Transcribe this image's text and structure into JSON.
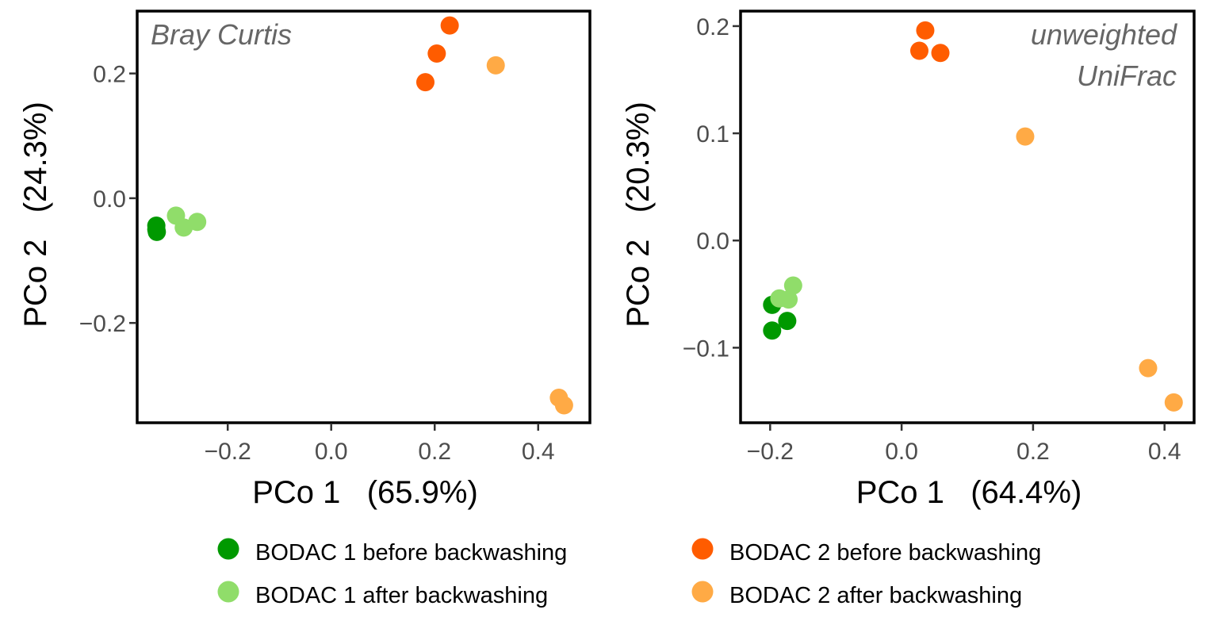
{
  "chart_data": [
    {
      "type": "scatter",
      "panel_label": [
        "Bray Curtis"
      ],
      "panel_label_position": "top-left",
      "xlabel": "PCo 1   (65.9%)",
      "ylabel": "PCo 2   (24.3%)",
      "xlim": [
        -0.375,
        0.5
      ],
      "ylim": [
        -0.36,
        0.3
      ],
      "xticks": [
        {
          "value": -0.2,
          "label": "−0.2"
        },
        {
          "value": 0.0,
          "label": "0.0"
        },
        {
          "value": 0.2,
          "label": "0.2"
        },
        {
          "value": 0.4,
          "label": "0.4"
        }
      ],
      "yticks": [
        {
          "value": -0.2,
          "label": "−0.2"
        },
        {
          "value": 0.0,
          "label": "0.0"
        },
        {
          "value": 0.2,
          "label": "0.2"
        }
      ],
      "grid": false,
      "series": [
        {
          "name": "BODAC 1 before backwashing",
          "color": "#009900",
          "points": [
            [
              -0.338,
              -0.044
            ],
            [
              -0.338,
              -0.05
            ],
            [
              -0.337,
              -0.054
            ]
          ]
        },
        {
          "name": "BODAC 1 after backwashing",
          "color": "#90DD6A",
          "points": [
            [
              -0.3,
              -0.028
            ],
            [
              -0.285,
              -0.047
            ],
            [
              -0.259,
              -0.038
            ]
          ]
        },
        {
          "name": "BODAC 2 before backwashing",
          "color": "#FF5C00",
          "points": [
            [
              0.182,
              0.186
            ],
            [
              0.204,
              0.232
            ],
            [
              0.229,
              0.277
            ]
          ]
        },
        {
          "name": "BODAC 2 after backwashing",
          "color": "#FFAA45",
          "points": [
            [
              0.318,
              0.213
            ],
            [
              0.44,
              -0.32
            ],
            [
              0.45,
              -0.332
            ]
          ]
        }
      ]
    },
    {
      "type": "scatter",
      "panel_label": [
        "unweighted",
        "UniFrac"
      ],
      "panel_label_position": "top-right",
      "xlabel": "PCo 1   (64.4%)",
      "ylabel": "PCo 2   (20.3%)",
      "xlim": [
        -0.245,
        0.445
      ],
      "ylim": [
        -0.17,
        0.214
      ],
      "xticks": [
        {
          "value": -0.2,
          "label": "−0.2"
        },
        {
          "value": 0.0,
          "label": "0.0"
        },
        {
          "value": 0.2,
          "label": "0.2"
        },
        {
          "value": 0.4,
          "label": "0.4"
        }
      ],
      "yticks": [
        {
          "value": -0.1,
          "label": "−0.1"
        },
        {
          "value": 0.0,
          "label": "0.0"
        },
        {
          "value": 0.1,
          "label": "0.1"
        },
        {
          "value": 0.2,
          "label": "0.2"
        }
      ],
      "grid": false,
      "series": [
        {
          "name": "BODAC 1 before backwashing",
          "color": "#009900",
          "points": [
            [
              -0.197,
              -0.06
            ],
            [
              -0.174,
              -0.075
            ],
            [
              -0.197,
              -0.084
            ]
          ]
        },
        {
          "name": "BODAC 1 after backwashing",
          "color": "#90DD6A",
          "points": [
            [
              -0.186,
              -0.054
            ],
            [
              -0.172,
              -0.055
            ],
            [
              -0.165,
              -0.042
            ]
          ]
        },
        {
          "name": "BODAC 2 before backwashing",
          "color": "#FF5C00",
          "points": [
            [
              0.027,
              0.177
            ],
            [
              0.036,
              0.196
            ],
            [
              0.059,
              0.175
            ]
          ]
        },
        {
          "name": "BODAC 2 after backwashing",
          "color": "#FFAA45",
          "points": [
            [
              0.188,
              0.097
            ],
            [
              0.375,
              -0.119
            ],
            [
              0.414,
              -0.151
            ]
          ]
        }
      ]
    }
  ],
  "legend": {
    "position": "bottom",
    "items": [
      {
        "label": "BODAC 1 before backwashing",
        "color": "#009900"
      },
      {
        "label": "BODAC 1 after backwashing",
        "color": "#90DD6A"
      },
      {
        "label": "BODAC 2 before backwashing",
        "color": "#FF5C00"
      },
      {
        "label": "BODAC 2 after backwashing",
        "color": "#FFAA45"
      }
    ]
  }
}
